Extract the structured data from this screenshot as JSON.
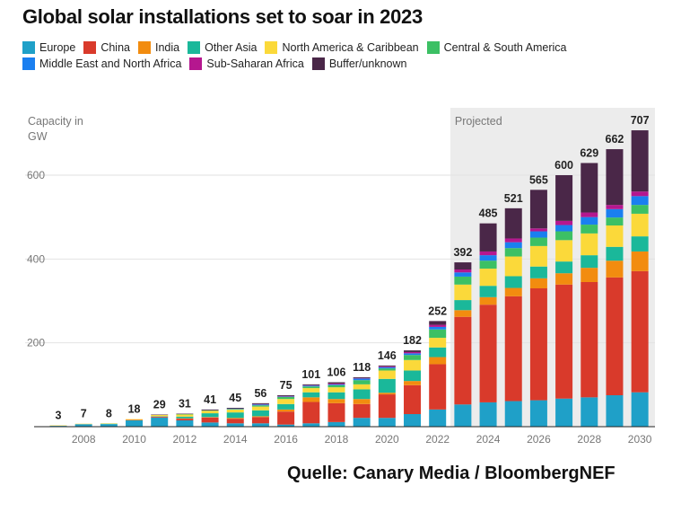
{
  "chart_data": {
    "type": "stacked-bar",
    "title": "Global solar installations set to soar in 2023",
    "ylabel": "Capacity in GW",
    "ylabel_lines": [
      "Capacity in",
      "GW"
    ],
    "ylim": [
      0,
      700
    ],
    "yticks": [
      200,
      400,
      600
    ],
    "xtick_labels": [
      "2008",
      "2010",
      "2012",
      "2014",
      "2016",
      "2018",
      "2020",
      "2022",
      "2024",
      "2026",
      "2028",
      "2030"
    ],
    "grid": true,
    "legend_position": "top-left",
    "annotation": "Projected",
    "projected_from": 2023,
    "categories": [
      2007,
      2008,
      2009,
      2010,
      2011,
      2012,
      2013,
      2014,
      2015,
      2016,
      2017,
      2018,
      2019,
      2020,
      2021,
      2022,
      2023,
      2024,
      2025,
      2026,
      2027,
      2028,
      2029,
      2030
    ],
    "totals": [
      3,
      7,
      8,
      18,
      29,
      31,
      41,
      45,
      56,
      75,
      101,
      106,
      118,
      146,
      182,
      252,
      392,
      485,
      521,
      565,
      600,
      629,
      662,
      707
    ],
    "series": [
      {
        "name": "Europe",
        "color": "#1fa0c8",
        "values": [
          2,
          6,
          6,
          15,
          22,
          15,
          10,
          8,
          8,
          5,
          8,
          11,
          21,
          21,
          30,
          41,
          53,
          58,
          61,
          63,
          67,
          70,
          75,
          82
        ]
      },
      {
        "name": "China",
        "color": "#d93a2b",
        "values": [
          0,
          0,
          0,
          1,
          2,
          4,
          12,
          11,
          15,
          31,
          51,
          45,
          33,
          56,
          69,
          108,
          209,
          233,
          250,
          267,
          272,
          275,
          281,
          289
        ]
      },
      {
        "name": "India",
        "color": "#f28c0f",
        "values": [
          0,
          0,
          0,
          0,
          0,
          1,
          1,
          2,
          2,
          5,
          11,
          10,
          12,
          4,
          10,
          17,
          16,
          18,
          20,
          24,
          27,
          34,
          40,
          47
        ]
      },
      {
        "name": "Other Asia",
        "color": "#1ab89a",
        "values": [
          0,
          0,
          1,
          0,
          1,
          4,
          9,
          13,
          14,
          13,
          12,
          16,
          23,
          33,
          25,
          23,
          24,
          27,
          28,
          28,
          28,
          30,
          33,
          36
        ]
      },
      {
        "name": "North America & Caribbean",
        "color": "#fbd93a",
        "values": [
          1,
          1,
          1,
          2,
          3,
          5,
          6,
          7,
          9,
          12,
          10,
          12,
          12,
          20,
          25,
          23,
          37,
          41,
          47,
          49,
          51,
          52,
          51,
          54
        ]
      },
      {
        "name": "Central & South America",
        "color": "#3cc064",
        "values": [
          0,
          0,
          0,
          0,
          0,
          1,
          1,
          1,
          3,
          5,
          4,
          5,
          10,
          5,
          12,
          20,
          19,
          19,
          20,
          20,
          21,
          21,
          19,
          21
        ]
      },
      {
        "name": "Middle East and North Africa",
        "color": "#1a7ff0",
        "values": [
          0,
          0,
          0,
          0,
          0,
          0,
          0,
          1,
          2,
          1,
          2,
          2,
          4,
          3,
          4,
          6,
          10,
          13,
          14,
          15,
          15,
          18,
          20,
          21
        ]
      },
      {
        "name": "Sub-Saharan Africa",
        "color": "#b5178f",
        "values": [
          0,
          0,
          0,
          0,
          0,
          0,
          0,
          0,
          1,
          1,
          1,
          2,
          1,
          2,
          3,
          5,
          7,
          9,
          9,
          7,
          10,
          11,
          10,
          11
        ]
      },
      {
        "name": "Buffer/unknown",
        "color": "#4a2748",
        "values": [
          0,
          0,
          0,
          0,
          1,
          1,
          2,
          2,
          2,
          2,
          2,
          3,
          2,
          2,
          4,
          9,
          17,
          67,
          72,
          92,
          109,
          118,
          133,
          146
        ]
      }
    ],
    "colors": {
      "grid": "#e2e2e2",
      "projected_bg": "#ececec",
      "axis": "#222222",
      "tick_text": "#777777"
    }
  },
  "source": "Quelle: Canary Media / BloombergNEF"
}
